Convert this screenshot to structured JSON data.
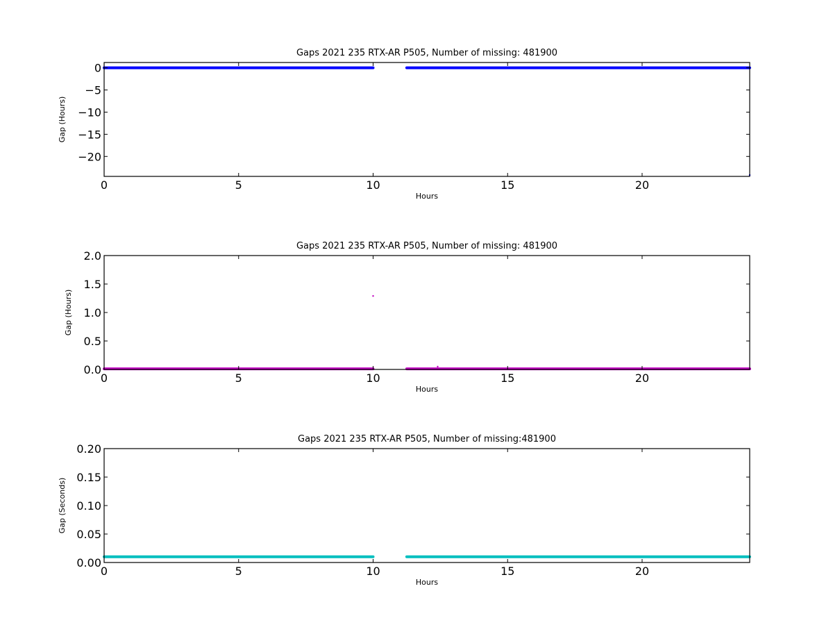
{
  "chart_data": [
    {
      "type": "scatter",
      "title": "Gaps 2021 235 RTX-AR  P505, Number of missing: 481900",
      "xlabel": "Hours",
      "ylabel": "Gap (Hours)",
      "xlim": [
        0,
        24
      ],
      "ylim": [
        -24.5,
        1.2
      ],
      "xticks": [
        0,
        5,
        10,
        15,
        20
      ],
      "yticks": [
        0,
        -5,
        -10,
        -15,
        -20
      ],
      "color": "#0000ff",
      "grid": false,
      "series": [
        {
          "segments": [
            [
              0,
              10.0
            ],
            [
              11.25,
              24
            ]
          ],
          "y": 0
        },
        {
          "points": [
            [
              24,
              -24.2
            ]
          ]
        }
      ]
    },
    {
      "type": "scatter",
      "title": "Gaps 2021 235 RTX-AR  P505, Number of missing: 481900",
      "xlabel": "Hours",
      "ylabel": "Gap (Hours)",
      "xlim": [
        0,
        24
      ],
      "ylim": [
        0,
        2.0
      ],
      "xticks": [
        0,
        5,
        10,
        15,
        20
      ],
      "yticks": [
        0.0,
        0.5,
        1.0,
        1.5,
        2.0
      ],
      "color": "#bf00bf",
      "grid": false,
      "series": [
        {
          "segments": [
            [
              0,
              10.0
            ],
            [
              11.25,
              24
            ]
          ],
          "y": 0.01
        },
        {
          "points": [
            [
              10.0,
              1.29
            ],
            [
              12.4,
              0.05
            ]
          ]
        }
      ]
    },
    {
      "type": "scatter",
      "title": "Gaps 2021 235 RTX-AR  P505, Number of missing:481900",
      "xlabel": "Hours",
      "ylabel": "Gap (Seconds)",
      "xlim": [
        0,
        24
      ],
      "ylim": [
        0,
        0.2
      ],
      "xticks": [
        0,
        5,
        10,
        15,
        20
      ],
      "yticks": [
        0.0,
        0.05,
        0.1,
        0.15,
        0.2
      ],
      "color": "#00bfbf",
      "grid": false,
      "series": [
        {
          "segments": [
            [
              0,
              10.0
            ],
            [
              11.25,
              24
            ]
          ],
          "y": 0.01
        }
      ]
    }
  ]
}
